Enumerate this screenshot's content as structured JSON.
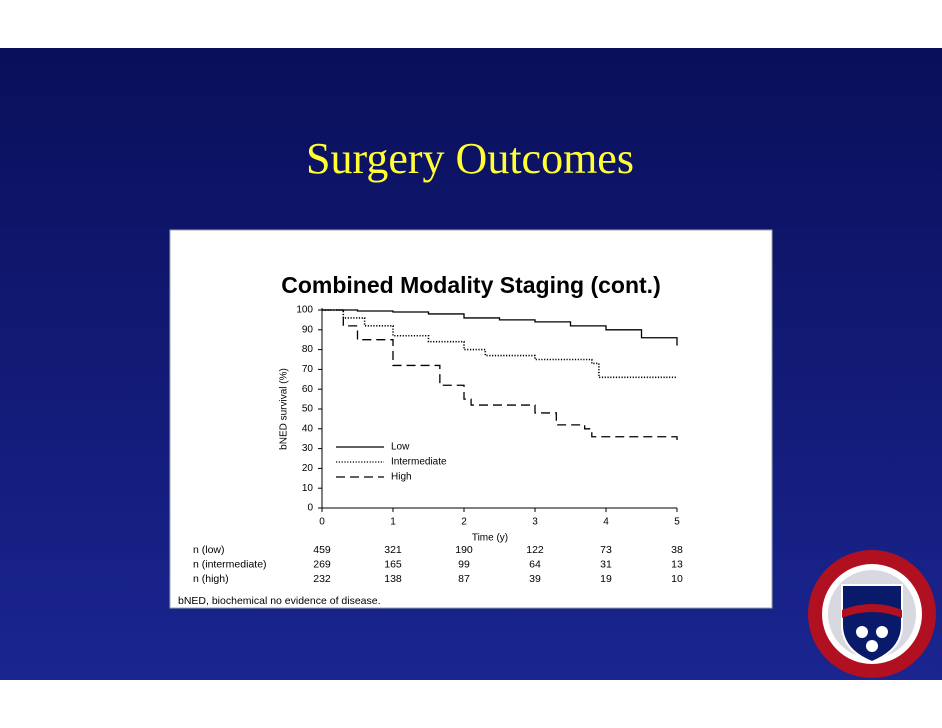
{
  "slide": {
    "title": "Surgery Outcomes"
  },
  "chart_data": {
    "type": "line",
    "step": true,
    "title": "Combined Modality Staging (cont.)",
    "x_label": "Time (y)",
    "y_label": "bNED survival (%)",
    "xlim": [
      0,
      5
    ],
    "xticks": [
      0,
      1,
      2,
      3,
      4,
      5
    ],
    "ylim": [
      0,
      100
    ],
    "yticks": [
      0,
      10,
      20,
      30,
      40,
      50,
      60,
      70,
      80,
      90,
      100
    ],
    "series": [
      {
        "name": "Low",
        "color": "#000000",
        "line_style": "solid",
        "x": [
          0,
          0.5,
          1,
          1.5,
          2,
          2.5,
          3,
          3.5,
          4,
          4.5,
          5
        ],
        "values": [
          100,
          99.5,
          99,
          98,
          96,
          95,
          94,
          92,
          90,
          86,
          82
        ]
      },
      {
        "name": "Intermediate",
        "color": "#000000",
        "line_style": "dotted",
        "x": [
          0,
          0.3,
          0.6,
          1,
          1.5,
          2,
          2.3,
          3,
          3.8,
          3.9,
          5
        ],
        "values": [
          100,
          96,
          92,
          87,
          84,
          80,
          77,
          75,
          73,
          66,
          66
        ]
      },
      {
        "name": "High",
        "color": "#000000",
        "line_style": "dashed",
        "x": [
          0,
          0.3,
          0.5,
          1,
          1.66,
          2,
          2.1,
          3,
          3.3,
          3.7,
          3.8,
          5
        ],
        "values": [
          100,
          92,
          85,
          72,
          62,
          55,
          52,
          48,
          42,
          40,
          36,
          33
        ]
      }
    ],
    "risk_table": {
      "rows": [
        {
          "label": "n (low)",
          "values": [
            459,
            321,
            190,
            122,
            73,
            38
          ]
        },
        {
          "label": "n (intermediate)",
          "values": [
            269,
            165,
            99,
            64,
            31,
            13
          ]
        },
        {
          "label": "n (high)",
          "values": [
            232,
            138,
            87,
            39,
            19,
            10
          ]
        }
      ]
    },
    "footnote": "bNED, biochemical no evidence of disease."
  }
}
